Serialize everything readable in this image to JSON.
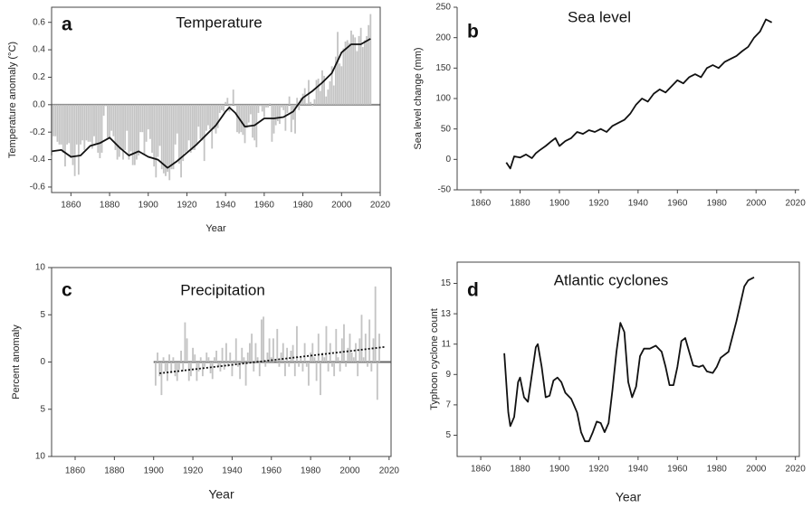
{
  "chart_data": [
    {
      "type": "combo",
      "label": "a",
      "title": "Temperature",
      "ylabel": "Temperature anomaly (°C)",
      "xlabel": "Year",
      "frame": true,
      "baseline": "#888888",
      "xlim": [
        1850,
        2020
      ],
      "xticks": [
        1860,
        1880,
        1900,
        1920,
        1940,
        1960,
        1980,
        2000,
        2020
      ],
      "ylim": [
        -0.64,
        0.71
      ],
      "yticks": [
        -0.6,
        -0.4,
        -0.2,
        {
          "value": 0,
          "label": "0.0"
        },
        0.2,
        0.4,
        0.6
      ],
      "series": [
        {
          "type": "bar",
          "color": "#c4c4c4",
          "x": [
            1850,
            1851,
            1852,
            1853,
            1854,
            1855,
            1856,
            1857,
            1858,
            1859,
            1860,
            1861,
            1862,
            1863,
            1864,
            1865,
            1866,
            1867,
            1868,
            1869,
            1870,
            1871,
            1872,
            1873,
            1874,
            1875,
            1876,
            1877,
            1878,
            1879,
            1880,
            1881,
            1882,
            1883,
            1884,
            1885,
            1886,
            1887,
            1888,
            1889,
            1890,
            1891,
            1892,
            1893,
            1894,
            1895,
            1896,
            1897,
            1898,
            1899,
            1900,
            1901,
            1902,
            1903,
            1904,
            1905,
            1906,
            1907,
            1908,
            1909,
            1910,
            1911,
            1912,
            1913,
            1914,
            1915,
            1916,
            1917,
            1918,
            1919,
            1920,
            1921,
            1922,
            1923,
            1924,
            1925,
            1926,
            1927,
            1928,
            1929,
            1930,
            1931,
            1932,
            1933,
            1934,
            1935,
            1936,
            1937,
            1938,
            1939,
            1940,
            1941,
            1942,
            1943,
            1944,
            1945,
            1946,
            1947,
            1948,
            1949,
            1950,
            1951,
            1952,
            1953,
            1954,
            1955,
            1956,
            1957,
            1958,
            1959,
            1960,
            1961,
            1962,
            1963,
            1964,
            1965,
            1966,
            1967,
            1968,
            1969,
            1970,
            1971,
            1972,
            1973,
            1974,
            1975,
            1976,
            1977,
            1978,
            1979,
            1980,
            1981,
            1982,
            1983,
            1984,
            1985,
            1986,
            1987,
            1988,
            1989,
            1990,
            1991,
            1992,
            1993,
            1994,
            1995,
            1996,
            1997,
            1998,
            1999,
            2000,
            2001,
            2002,
            2003,
            2004,
            2005,
            2006,
            2007,
            2008,
            2009,
            2010,
            2011,
            2012,
            2013,
            2014,
            2015
          ],
          "values": [
            -0.37,
            -0.23,
            -0.23,
            -0.27,
            -0.29,
            -0.29,
            -0.35,
            -0.45,
            -0.29,
            -0.28,
            -0.39,
            -0.44,
            -0.52,
            -0.29,
            -0.51,
            -0.29,
            -0.26,
            -0.33,
            -0.26,
            -0.27,
            -0.27,
            -0.32,
            -0.23,
            -0.29,
            -0.35,
            -0.39,
            -0.35,
            -0.08,
            -0.01,
            -0.24,
            -0.24,
            -0.19,
            -0.23,
            -0.33,
            -0.4,
            -0.38,
            -0.33,
            -0.4,
            -0.33,
            -0.19,
            -0.4,
            -0.34,
            -0.44,
            -0.44,
            -0.4,
            -0.37,
            -0.2,
            -0.2,
            -0.36,
            -0.27,
            -0.18,
            -0.25,
            -0.35,
            -0.45,
            -0.53,
            -0.38,
            -0.3,
            -0.47,
            -0.5,
            -0.52,
            -0.49,
            -0.55,
            -0.47,
            -0.47,
            -0.29,
            -0.21,
            -0.43,
            -0.53,
            -0.41,
            -0.35,
            -0.34,
            -0.26,
            -0.35,
            -0.33,
            -0.33,
            -0.29,
            -0.16,
            -0.25,
            -0.26,
            -0.41,
            -0.19,
            -0.15,
            -0.18,
            -0.32,
            -0.18,
            -0.21,
            -0.17,
            -0.06,
            -0.04,
            -0.05,
            0.02,
            0.05,
            -0.05,
            -0.01,
            0.11,
            -0.01,
            -0.2,
            -0.21,
            -0.2,
            -0.22,
            -0.28,
            -0.17,
            -0.13,
            -0.07,
            -0.24,
            -0.26,
            -0.31,
            -0.06,
            -0.01,
            -0.05,
            -0.09,
            -0.02,
            -0.02,
            0.01,
            -0.27,
            -0.21,
            -0.15,
            -0.12,
            -0.14,
            -0.02,
            -0.04,
            -0.19,
            -0.06,
            0.06,
            -0.2,
            -0.11,
            -0.21,
            0.05,
            -0.04,
            0.05,
            0.08,
            0.12,
            0.01,
            0.18,
            0.02,
            -0.01,
            0.04,
            0.18,
            0.19,
            0.1,
            0.25,
            0.21,
            0.06,
            0.11,
            0.17,
            0.28,
            0.14,
            0.35,
            0.53,
            0.3,
            0.28,
            0.41,
            0.46,
            0.47,
            0.45,
            0.54,
            0.51,
            0.49,
            0.39,
            0.5,
            0.56,
            0.42,
            0.47,
            0.5,
            0.58,
            0.66
          ]
        },
        {
          "type": "line",
          "color": "#111111",
          "x": [
            1850,
            1855,
            1860,
            1865,
            1870,
            1875,
            1880,
            1885,
            1890,
            1895,
            1900,
            1905,
            1910,
            1915,
            1920,
            1925,
            1930,
            1935,
            1940,
            1942,
            1945,
            1950,
            1955,
            1960,
            1965,
            1970,
            1975,
            1980,
            1985,
            1990,
            1995,
            2000,
            2005,
            2010,
            2015
          ],
          "values": [
            -0.34,
            -0.33,
            -0.38,
            -0.37,
            -0.3,
            -0.28,
            -0.24,
            -0.31,
            -0.37,
            -0.34,
            -0.38,
            -0.4,
            -0.46,
            -0.41,
            -0.35,
            -0.29,
            -0.22,
            -0.15,
            -0.05,
            -0.02,
            -0.06,
            -0.16,
            -0.15,
            -0.1,
            -0.1,
            -0.09,
            -0.05,
            0.05,
            0.1,
            0.16,
            0.23,
            0.38,
            0.44,
            0.44,
            0.48
          ]
        }
      ]
    },
    {
      "type": "line",
      "label": "b",
      "title": "Sea level",
      "ylabel": "Sea level change (mm)",
      "frame": false,
      "xlim": [
        1848,
        2022
      ],
      "xticks": [
        1860,
        1880,
        1900,
        1920,
        1940,
        1960,
        1980,
        2000,
        2020
      ],
      "ylim": [
        -50,
        250
      ],
      "yticks": [
        -50,
        0,
        50,
        100,
        150,
        200,
        250
      ],
      "series": [
        {
          "type": "line",
          "color": "#111111",
          "x": [
            1873,
            1875,
            1877,
            1880,
            1883,
            1886,
            1888,
            1890,
            1893,
            1896,
            1898,
            1900,
            1903,
            1906,
            1909,
            1912,
            1915,
            1918,
            1921,
            1924,
            1927,
            1930,
            1933,
            1936,
            1939,
            1942,
            1945,
            1948,
            1951,
            1954,
            1957,
            1960,
            1963,
            1966,
            1969,
            1972,
            1975,
            1978,
            1981,
            1984,
            1987,
            1990,
            1993,
            1996,
            1999,
            2002,
            2005,
            2008
          ],
          "values": [
            -5,
            -15,
            5,
            3,
            8,
            2,
            10,
            15,
            22,
            30,
            35,
            22,
            30,
            35,
            45,
            42,
            48,
            45,
            50,
            45,
            55,
            60,
            65,
            75,
            90,
            100,
            95,
            108,
            115,
            110,
            120,
            130,
            125,
            135,
            140,
            135,
            150,
            155,
            150,
            160,
            165,
            170,
            178,
            185,
            200,
            210,
            230,
            225
          ]
        }
      ]
    },
    {
      "type": "combo",
      "label": "c",
      "title": "Precipitation",
      "ylabel": "Percent anomaly",
      "xlabel": "Year",
      "frame": true,
      "baseline": "#666666",
      "xlim": [
        1848,
        2021
      ],
      "xticks": [
        1860,
        1880,
        1900,
        1920,
        1940,
        1960,
        1980,
        2000,
        2020
      ],
      "ylim": [
        -10,
        10
      ],
      "yticks": [
        {
          "value": -10,
          "label": "10"
        },
        {
          "value": -5,
          "label": "5"
        },
        0,
        5,
        10
      ],
      "series": [
        {
          "type": "bar",
          "color": "#c4c4c4",
          "x": [
            1901,
            1902,
            1903,
            1904,
            1905,
            1906,
            1907,
            1908,
            1909,
            1910,
            1911,
            1912,
            1913,
            1914,
            1915,
            1916,
            1917,
            1918,
            1919,
            1920,
            1921,
            1922,
            1923,
            1924,
            1925,
            1926,
            1927,
            1928,
            1929,
            1930,
            1931,
            1932,
            1933,
            1934,
            1935,
            1936,
            1937,
            1938,
            1939,
            1940,
            1941,
            1942,
            1943,
            1944,
            1945,
            1946,
            1947,
            1948,
            1949,
            1950,
            1951,
            1952,
            1953,
            1954,
            1955,
            1956,
            1957,
            1958,
            1959,
            1960,
            1961,
            1962,
            1963,
            1964,
            1965,
            1966,
            1967,
            1968,
            1969,
            1970,
            1971,
            1972,
            1973,
            1974,
            1975,
            1976,
            1977,
            1978,
            1979,
            1980,
            1981,
            1982,
            1983,
            1984,
            1985,
            1986,
            1987,
            1988,
            1989,
            1990,
            1991,
            1992,
            1993,
            1994,
            1995,
            1996,
            1997,
            1998,
            1999,
            2000,
            2001,
            2002,
            2003,
            2004,
            2005,
            2006,
            2007,
            2008,
            2009,
            2010,
            2011,
            2012,
            2013,
            2014,
            2015
          ],
          "values": [
            -2.5,
            1.0,
            -1.5,
            -3.5,
            0.5,
            -1.0,
            -2.0,
            0.8,
            -1.2,
            0.5,
            -1.5,
            -2.0,
            -0.8,
            1.2,
            -1.0,
            4.2,
            2.5,
            -2.0,
            -1.5,
            1.5,
            0.8,
            -2.0,
            -1.0,
            0.5,
            -1.5,
            -0.5,
            1.0,
            0.5,
            -1.2,
            -1.8,
            0.5,
            1.2,
            -0.5,
            -1.0,
            1.5,
            -0.8,
            2.0,
            -0.5,
            1.0,
            -1.5,
            0.2,
            2.5,
            -0.5,
            -1.8,
            1.5,
            0.5,
            -2.5,
            1.0,
            2.0,
            3.0,
            -1.0,
            2.0,
            0.5,
            -1.5,
            4.5,
            4.8,
            -0.5,
            1.0,
            2.5,
            0.5,
            2.5,
            0.0,
            3.5,
            -0.5,
            1.0,
            2.0,
            -1.5,
            1.5,
            -0.5,
            1.2,
            1.8,
            -1.5,
            3.8,
            -0.5,
            0.5,
            -1.0,
            2.0,
            -0.5,
            -2.5,
            1.0,
            2.0,
            0.5,
            -2.0,
            3.0,
            -3.5,
            1.0,
            0.5,
            3.8,
            -1.0,
            2.0,
            -0.5,
            -1.5,
            3.5,
            0.5,
            -1.0,
            2.5,
            4.0,
            -0.5,
            1.5,
            3.0,
            1.0,
            0.5,
            2.0,
            -1.5,
            2.5,
            5.0,
            0.5,
            3.0,
            -0.5,
            4.5,
            -1.0,
            2.5,
            8.0,
            -4.0,
            3.0
          ]
        },
        {
          "type": "line",
          "color": "#111111",
          "dash": "2 2",
          "x": [
            1903,
            2018
          ],
          "values": [
            -1.2,
            1.6
          ]
        }
      ]
    },
    {
      "type": "line",
      "label": "d",
      "title": "Atlantic cyclones",
      "ylabel": "Typhoon cyclone count",
      "xlabel": "Year",
      "frame": true,
      "xlim": [
        1848,
        2022
      ],
      "xticks": [
        1860,
        1880,
        1900,
        1920,
        1940,
        1960,
        1980,
        2000,
        2020
      ],
      "ylim": [
        3.6,
        16.4
      ],
      "yticks": [
        5,
        7,
        9,
        11,
        13,
        15
      ],
      "series": [
        {
          "type": "line",
          "color": "#111111",
          "x": [
            1872,
            1874,
            1875,
            1877,
            1879,
            1880,
            1882,
            1884,
            1886,
            1888,
            1889,
            1891,
            1893,
            1895,
            1897,
            1899,
            1901,
            1903,
            1906,
            1909,
            1911,
            1913,
            1915,
            1917,
            1919,
            1921,
            1923,
            1925,
            1927,
            1929,
            1931,
            1933,
            1935,
            1937,
            1939,
            1941,
            1943,
            1946,
            1949,
            1952,
            1954,
            1956,
            1958,
            1960,
            1962,
            1964,
            1966,
            1968,
            1971,
            1973,
            1975,
            1978,
            1980,
            1982,
            1986,
            1990,
            1994,
            1996,
            1999
          ],
          "values": [
            10.4,
            6.5,
            5.6,
            6.2,
            8.5,
            8.8,
            7.5,
            7.2,
            9,
            10.8,
            11,
            9.5,
            7.5,
            7.6,
            8.6,
            8.8,
            8.5,
            7.8,
            7.4,
            6.5,
            5.2,
            4.6,
            4.6,
            5.2,
            5.9,
            5.8,
            5.2,
            5.8,
            8,
            10.5,
            12.4,
            11.8,
            8.5,
            7.5,
            8.2,
            10.2,
            10.7,
            10.7,
            10.9,
            10.5,
            9.5,
            8.3,
            8.3,
            9.5,
            11.2,
            11.4,
            10.5,
            9.6,
            9.5,
            9.6,
            9.2,
            9.1,
            9.5,
            10.1,
            10.5,
            12.5,
            14.8,
            15.2,
            15.4
          ]
        }
      ]
    }
  ]
}
